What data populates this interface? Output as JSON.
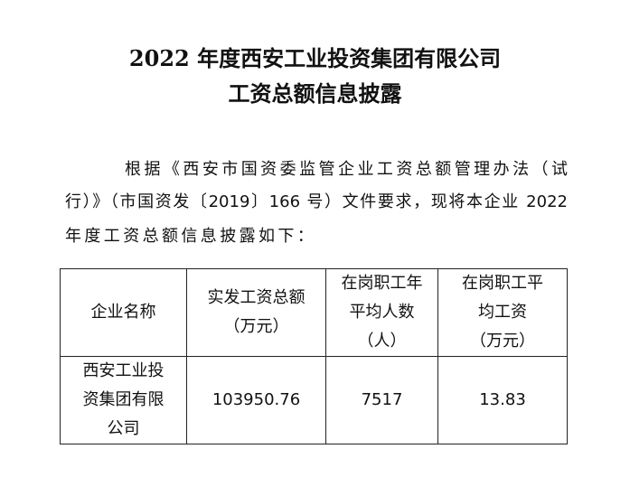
{
  "title": {
    "line1": "2022 年度西安工业投资集团有限公司",
    "line2": "工资总额信息披露"
  },
  "paragraph": {
    "line1": "根据《西安市国资委监管企业工资总额管理办法（试",
    "line2": "行）》（市国资发〔2019〕166 号）文件要求，现将本企业 2022",
    "line3": "年度工资总额信息披露如下："
  },
  "table": {
    "headers": [
      {
        "l1": "企业名称",
        "l2": "",
        "l3": ""
      },
      {
        "l1": "实发工资总额",
        "l2": "（万元）",
        "l3": ""
      },
      {
        "l1": "在岗职工年",
        "l2": "平均人数",
        "l3": "（人）"
      },
      {
        "l1": "在岗职工平",
        "l2": "均工资",
        "l3": "（万元）"
      }
    ],
    "rows": [
      {
        "company_l1": "西安工业投",
        "company_l2": "资集团有限",
        "company_l3": "公司",
        "total_wages": "103950.76",
        "avg_staff": "7517",
        "avg_wage": "13.83"
      }
    ]
  }
}
